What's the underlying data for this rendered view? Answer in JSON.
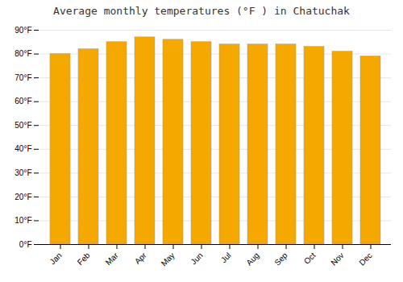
{
  "chart_data": {
    "type": "bar",
    "title": "Average monthly temperatures (°F ) in Chatuchak",
    "categories": [
      "Jan",
      "Feb",
      "Mar",
      "Apr",
      "May",
      "Jun",
      "Jul",
      "Aug",
      "Sep",
      "Oct",
      "Nov",
      "Dec"
    ],
    "values": [
      80,
      82,
      85,
      87,
      86,
      85,
      84,
      84,
      84,
      83,
      81,
      79
    ],
    "color": "#F5A800",
    "ylim": [
      0,
      90
    ],
    "yticks": [
      {
        "value": 0,
        "label": "0°F"
      },
      {
        "value": 10,
        "label": "10°F"
      },
      {
        "value": 20,
        "label": "20°F"
      },
      {
        "value": 30,
        "label": "30°F"
      },
      {
        "value": 40,
        "label": "40°F"
      },
      {
        "value": 50,
        "label": "50°F"
      },
      {
        "value": 60,
        "label": "60°F"
      },
      {
        "value": 70,
        "label": "70°F"
      },
      {
        "value": 80,
        "label": "80°F"
      },
      {
        "value": 90,
        "label": "90°F"
      }
    ],
    "grid": true
  }
}
